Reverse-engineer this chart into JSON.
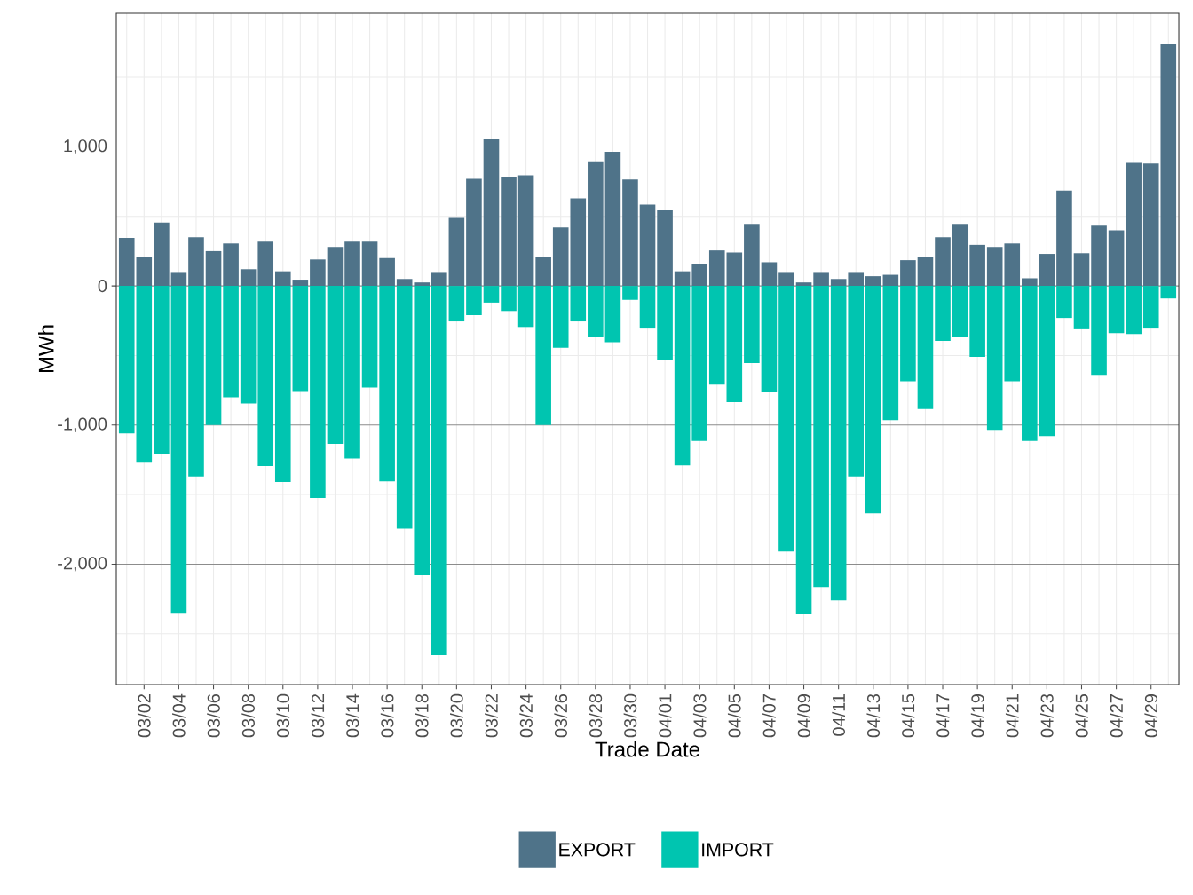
{
  "chart_data": {
    "type": "bar",
    "xlabel": "Trade Date",
    "ylabel": "MWh",
    "stacked": true,
    "grid": true,
    "legend": "bottom",
    "categories": [
      null,
      "03/02",
      null,
      "03/04",
      null,
      "03/06",
      null,
      "03/08",
      null,
      "03/10",
      null,
      "03/12",
      null,
      "03/14",
      null,
      "03/16",
      null,
      "03/18",
      null,
      "03/20",
      null,
      "03/22",
      null,
      "03/24",
      null,
      "03/26",
      null,
      "03/28",
      null,
      "03/30",
      null,
      "04/01",
      null,
      "04/03",
      null,
      "04/05",
      null,
      "04/07",
      null,
      "04/09",
      null,
      "04/11",
      null,
      "04/13",
      null,
      "04/15",
      null,
      "04/17",
      null,
      "04/19",
      null,
      "04/21",
      null,
      "04/23",
      null,
      "04/25",
      null,
      "04/27",
      null,
      "04/29",
      null
    ],
    "ylim": [
      -2865,
      1960
    ],
    "yticks": [
      {
        "value": -2000,
        "label": "-2,000"
      },
      {
        "value": -1000,
        "label": "-1,000"
      },
      0,
      {
        "value": 1000,
        "label": "1,000"
      }
    ],
    "series": [
      {
        "name": "EXPORT",
        "color": "#4f7389",
        "values": [
          345,
          205,
          455,
          100,
          350,
          250,
          305,
          120,
          325,
          105,
          45,
          190,
          280,
          325,
          325,
          200,
          50,
          25,
          100,
          495,
          770,
          1055,
          785,
          795,
          205,
          420,
          630,
          895,
          965,
          765,
          585,
          550,
          105,
          160,
          255,
          240,
          445,
          170,
          100,
          25,
          100,
          50,
          100,
          70,
          80,
          185,
          205,
          350,
          445,
          295,
          280,
          305,
          55,
          230,
          685,
          235,
          440,
          400,
          885,
          880,
          1740
        ]
      },
      {
        "name": "IMPORT",
        "color": "#00c5b0",
        "values": [
          -1060,
          -1265,
          -1205,
          -2350,
          -1370,
          -1000,
          -800,
          -845,
          -1295,
          -1410,
          -755,
          -1525,
          -1135,
          -1240,
          -730,
          -1405,
          -1745,
          -2080,
          -2655,
          -255,
          -210,
          -120,
          -180,
          -295,
          -1000,
          -445,
          -255,
          -365,
          -405,
          -100,
          -300,
          -530,
          -1290,
          -1115,
          -710,
          -835,
          -555,
          -760,
          -1910,
          -2360,
          -2165,
          -2260,
          -1370,
          -1635,
          -965,
          -685,
          -885,
          -395,
          -370,
          -510,
          -1035,
          -685,
          -1115,
          -1080,
          -230,
          -305,
          -640,
          -340,
          -345,
          -300,
          -90
        ]
      }
    ]
  }
}
